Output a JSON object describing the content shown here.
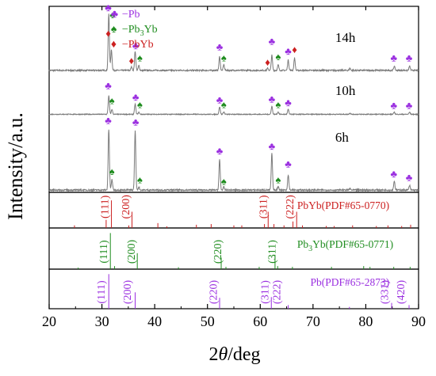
{
  "colors": {
    "pb": "#9b30e0",
    "pb3yb": "#1e8c1e",
    "pbyb": "#cc2020",
    "trace": "#7a7a7a",
    "frame": "#000000"
  },
  "chart_data": {
    "type": "line",
    "xlabel_prefix": "2",
    "xlabel_theta": "θ",
    "xlabel_suffix": "/deg",
    "ylabel": "Intensity/a.u.",
    "xlim": [
      20,
      90
    ],
    "x_ticks": [
      20,
      30,
      40,
      50,
      60,
      70,
      80,
      90
    ],
    "legend": [
      {
        "symbol": "♣",
        "sym_key": "pb",
        "prefix": "−Pb",
        "sub": "",
        "suffix": ""
      },
      {
        "symbol": "♠",
        "sym_key": "pb3yb",
        "prefix": "−Pb",
        "sub": "3",
        "suffix": "Yb"
      },
      {
        "symbol": "♦",
        "sym_key": "pbyb",
        "prefix": "−PbYb",
        "sub": "",
        "suffix": ""
      }
    ],
    "series": [
      {
        "name": "14h",
        "baseline": 0.07,
        "peaks": [
          [
            31.3,
            0.82
          ],
          [
            31.8,
            0.3
          ],
          [
            35.6,
            0.05
          ],
          [
            36.3,
            0.28
          ],
          [
            37,
            0.07
          ],
          [
            52.3,
            0.2
          ],
          [
            53.1,
            0.08
          ],
          [
            61.4,
            0.03
          ],
          [
            62.2,
            0.22
          ],
          [
            63.4,
            0.08
          ],
          [
            65.3,
            0.15
          ],
          [
            66.5,
            0.18
          ],
          [
            77,
            0.03
          ],
          [
            85.4,
            0.06
          ],
          [
            88.3,
            0.06
          ]
        ],
        "markers": [
          {
            "x": 31.2,
            "sym": "pb",
            "y": 0.93
          },
          {
            "x": 32.0,
            "sym": "pb3yb",
            "y": 0.83
          },
          {
            "x": 31.2,
            "sym": "pbyb",
            "y": 0.56
          },
          {
            "x": 35.6,
            "sym": "pbyb",
            "y": 0.16
          },
          {
            "x": 36.4,
            "sym": "pb",
            "y": 0.38
          },
          {
            "x": 37.2,
            "sym": "pb3yb",
            "y": 0.2
          },
          {
            "x": 52.3,
            "sym": "pb",
            "y": 0.36
          },
          {
            "x": 53.1,
            "sym": "pb3yb",
            "y": 0.2
          },
          {
            "x": 61.4,
            "sym": "pbyb",
            "y": 0.14
          },
          {
            "x": 62.2,
            "sym": "pb",
            "y": 0.44
          },
          {
            "x": 63.4,
            "sym": "pb3yb",
            "y": 0.22
          },
          {
            "x": 65.3,
            "sym": "pb",
            "y": 0.3
          },
          {
            "x": 66.5,
            "sym": "pbyb",
            "y": 0.32
          },
          {
            "x": 85.3,
            "sym": "pb",
            "y": 0.2
          },
          {
            "x": 88.2,
            "sym": "pb",
            "y": 0.2
          }
        ],
        "label": "14h"
      },
      {
        "name": "10h",
        "baseline": 0.05,
        "peaks": [
          [
            31.3,
            0.45
          ],
          [
            31.9,
            0.12
          ],
          [
            36.3,
            0.25
          ],
          [
            37,
            0.05
          ],
          [
            52.3,
            0.18
          ],
          [
            53.1,
            0.06
          ],
          [
            62.2,
            0.2
          ],
          [
            63.4,
            0.06
          ],
          [
            65.3,
            0.12
          ],
          [
            77,
            0.03
          ],
          [
            85.4,
            0.05
          ],
          [
            88.3,
            0.05
          ]
        ],
        "markers": [
          {
            "x": 31.2,
            "sym": "pb",
            "y": 0.66
          },
          {
            "x": 31.9,
            "sym": "pb3yb",
            "y": 0.3
          },
          {
            "x": 36.4,
            "sym": "pb",
            "y": 0.38
          },
          {
            "x": 37.2,
            "sym": "pb3yb",
            "y": 0.2
          },
          {
            "x": 52.3,
            "sym": "pb",
            "y": 0.32
          },
          {
            "x": 53.1,
            "sym": "pb3yb",
            "y": 0.2
          },
          {
            "x": 62.2,
            "sym": "pb",
            "y": 0.34
          },
          {
            "x": 63.4,
            "sym": "pb3yb",
            "y": 0.2
          },
          {
            "x": 65.3,
            "sym": "pb",
            "y": 0.25
          },
          {
            "x": 85.3,
            "sym": "pb",
            "y": 0.18
          },
          {
            "x": 88.2,
            "sym": "pb",
            "y": 0.18
          }
        ],
        "label": "10h"
      },
      {
        "name": "6h",
        "baseline": 0.03,
        "peaks": [
          [
            31.3,
            0.8
          ],
          [
            31.9,
            0.14
          ],
          [
            36.3,
            0.78
          ],
          [
            37,
            0.04
          ],
          [
            52.3,
            0.4
          ],
          [
            53.1,
            0.04
          ],
          [
            62.2,
            0.48
          ],
          [
            63.4,
            0.05
          ],
          [
            65.3,
            0.2
          ],
          [
            77,
            0.02
          ],
          [
            85.4,
            0.12
          ],
          [
            88.3,
            0.06
          ]
        ],
        "markers": [
          {
            "x": 31.2,
            "sym": "pb",
            "y": 0.9
          },
          {
            "x": 31.9,
            "sym": "pb3yb",
            "y": 0.23
          },
          {
            "x": 36.4,
            "sym": "pb",
            "y": 0.88
          },
          {
            "x": 37.2,
            "sym": "pb3yb",
            "y": 0.12
          },
          {
            "x": 52.3,
            "sym": "pb",
            "y": 0.5
          },
          {
            "x": 53.1,
            "sym": "pb3yb",
            "y": 0.1
          },
          {
            "x": 62.2,
            "sym": "pb",
            "y": 0.56
          },
          {
            "x": 63.4,
            "sym": "pb3yb",
            "y": 0.12
          },
          {
            "x": 65.3,
            "sym": "pb",
            "y": 0.33
          },
          {
            "x": 85.3,
            "sym": "pb",
            "y": 0.2
          },
          {
            "x": 88.2,
            "sym": "pb",
            "y": 0.15
          }
        ],
        "label": "6h"
      }
    ],
    "references": [
      {
        "prefix": "PbYb(PDF#65-0770)",
        "prefix_main": "PbYb(PDF#65-0770)",
        "sub": "",
        "suffix": "",
        "color_key": "pbyb",
        "lines": [
          [
            24.8,
            0.08
          ],
          [
            30.8,
            0.25
          ],
          [
            31.8,
            0.85
          ],
          [
            35.1,
            0.08
          ],
          [
            35.7,
            0.5
          ],
          [
            40.6,
            0.15
          ],
          [
            42.3,
            0.05
          ],
          [
            47.9,
            0.1
          ],
          [
            50.7,
            0.12
          ],
          [
            55,
            0.08
          ],
          [
            56.5,
            0.08
          ],
          [
            60.8,
            0.12
          ],
          [
            61.5,
            0.5
          ],
          [
            62.6,
            0.12
          ],
          [
            64.5,
            0.08
          ],
          [
            66.2,
            0.2
          ],
          [
            66.9,
            0.5
          ],
          [
            68,
            0.08
          ],
          [
            72.5,
            0.06
          ],
          [
            74,
            0.06
          ],
          [
            77.5,
            0.08
          ],
          [
            82,
            0.06
          ],
          [
            84.2,
            0.08
          ],
          [
            86.8,
            0.06
          ],
          [
            88.5,
            0.1
          ]
        ],
        "hkl": [
          {
            "x": 31.2,
            "t": "(111)"
          },
          {
            "x": 35.2,
            "t": "(200)"
          },
          {
            "x": 61.2,
            "t": "(311)"
          },
          {
            "x": 66.3,
            "t": "(222)"
          }
        ],
        "hkl_y": 0.7
      },
      {
        "prefix": "Pb",
        "prefix_main": "Pb",
        "sub": "3",
        "suffix": "Yb(PDF#65-0771)",
        "color_key": "pb3yb",
        "lines": [
          [
            25.5,
            0.04
          ],
          [
            31.6,
            0.95
          ],
          [
            32.4,
            0.08
          ],
          [
            36.7,
            0.42
          ],
          [
            44.5,
            0.05
          ],
          [
            52.6,
            0.3
          ],
          [
            53.5,
            0.06
          ],
          [
            59.8,
            0.06
          ],
          [
            62.8,
            0.38
          ],
          [
            63.3,
            0.08
          ],
          [
            66.1,
            0.06
          ],
          [
            73.5,
            0.06
          ],
          [
            79.6,
            0.08
          ],
          [
            80.8,
            0.06
          ],
          [
            85.3,
            0.06
          ],
          [
            88.4,
            0.06
          ]
        ],
        "hkl": [
          {
            "x": 31.0,
            "t": "(111)"
          },
          {
            "x": 36.2,
            "t": "(200)"
          },
          {
            "x": 52.6,
            "t": "(220)"
          },
          {
            "x": 62.9,
            "t": "(311)"
          }
        ],
        "hkl_y": 0.5
      },
      {
        "prefix": "Pb(PDF#65-2873)",
        "prefix_main": "Pb(PDF#65-2873)",
        "sub": "",
        "suffix": "",
        "color_key": "pb",
        "lines": [
          [
            31.3,
            0.95
          ],
          [
            36.3,
            0.45
          ],
          [
            52.3,
            0.3
          ],
          [
            62.1,
            0.32
          ],
          [
            65.3,
            0.1
          ],
          [
            76.9,
            0.05
          ],
          [
            84.9,
            0.16
          ],
          [
            88.2,
            0.1
          ]
        ],
        "hkl": [
          {
            "x": 30.5,
            "t": "(111)"
          },
          {
            "x": 35.5,
            "t": "(200)"
          },
          {
            "x": 51.8,
            "t": "(220)"
          },
          {
            "x": 61.5,
            "t": "(311)"
          },
          {
            "x": 63.8,
            "t": "(222)"
          },
          {
            "x": 84.2,
            "t": "(331)"
          },
          {
            "x": 87.3,
            "t": "(420)"
          }
        ],
        "hkl_y": 0.5
      }
    ]
  }
}
